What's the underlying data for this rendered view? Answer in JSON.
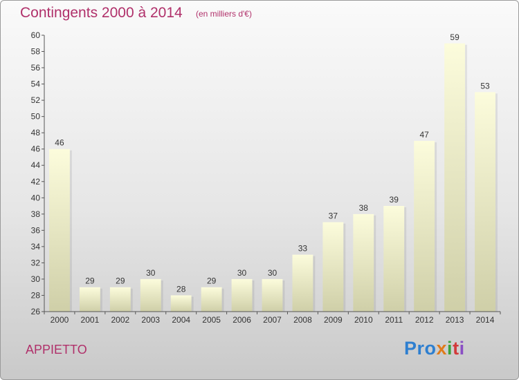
{
  "header": {
    "title": "Contingents 2000 à 2014",
    "subtitle": "(en milliers d'€)"
  },
  "footer": {
    "commune": "APPIETTO",
    "logo": [
      "Pro",
      "x",
      "i",
      "t",
      "i"
    ]
  },
  "colors": {
    "title": "#b0306a",
    "bar_top": "#fcfcdc",
    "bar_bottom": "#cfcfa8",
    "axis": "#555555"
  },
  "chart_data": {
    "type": "bar",
    "title": "Contingents 2000 à 2014",
    "subtitle": "(en milliers d'€)",
    "xlabel": "",
    "ylabel": "",
    "categories": [
      "2000",
      "2001",
      "2002",
      "2003",
      "2004",
      "2005",
      "2006",
      "2007",
      "2008",
      "2009",
      "2010",
      "2011",
      "2012",
      "2013",
      "2014"
    ],
    "values": [
      46,
      29,
      29,
      30,
      28,
      29,
      30,
      30,
      33,
      37,
      38,
      39,
      47,
      59,
      53
    ],
    "ylim": [
      26,
      60
    ],
    "yticks": [
      26,
      28,
      30,
      32,
      34,
      36,
      38,
      40,
      42,
      44,
      46,
      48,
      50,
      52,
      54,
      56,
      58,
      60
    ],
    "grid": false,
    "legend": "none"
  }
}
